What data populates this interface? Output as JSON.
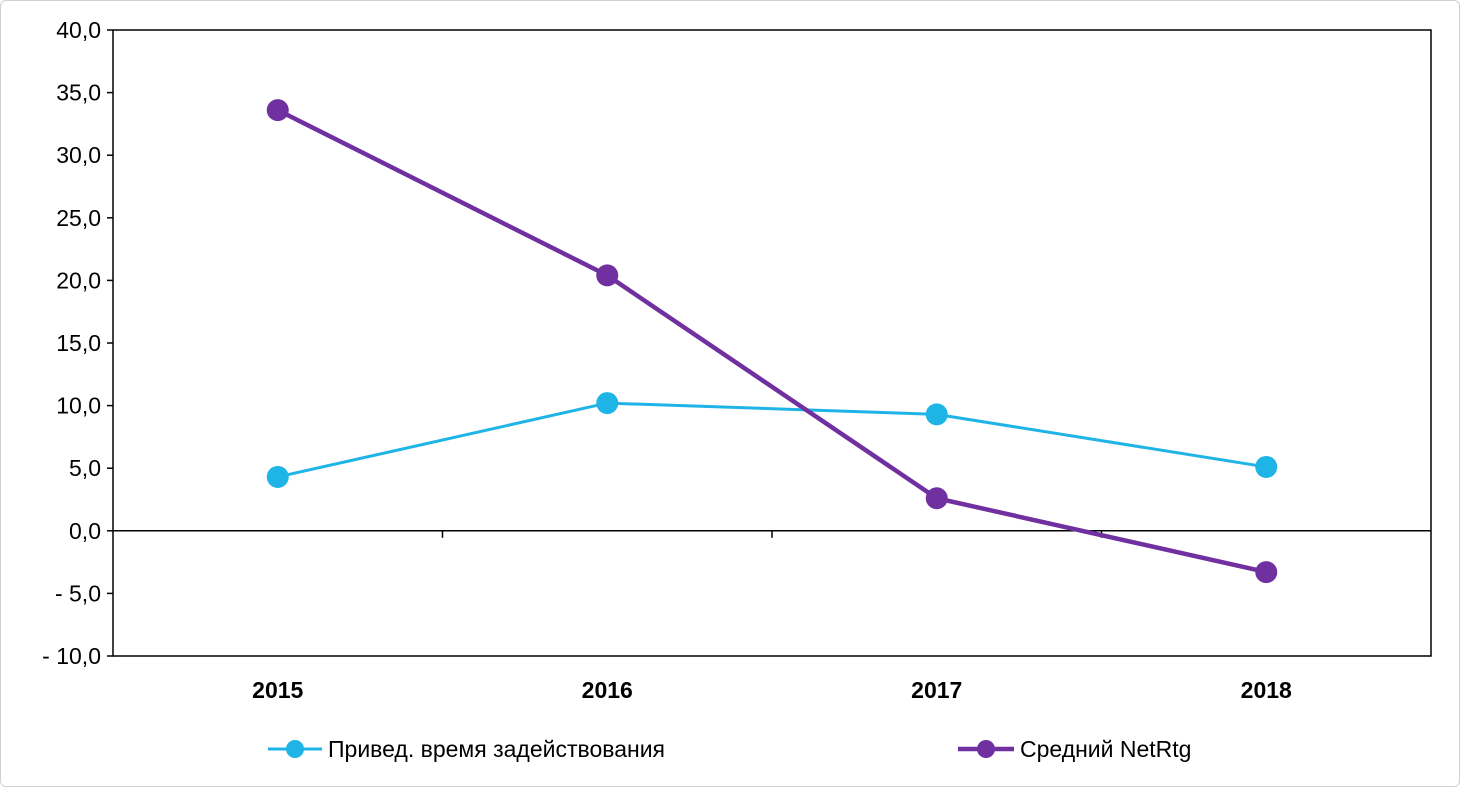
{
  "chart_data": {
    "type": "line",
    "title": "",
    "xlabel": "",
    "ylabel": "",
    "categories": [
      "2015",
      "2016",
      "2017",
      "2018"
    ],
    "ylim": [
      -10,
      40
    ],
    "y_ticks": [
      40,
      35,
      30,
      25,
      20,
      15,
      10,
      5,
      0,
      -5,
      -10
    ],
    "y_tick_labels": [
      "40,0",
      "35,0",
      "30,0",
      "25,0",
      "20,0",
      "15,0",
      "10,0",
      "5,0",
      "0,0",
      "- 5,0",
      "- 10,0"
    ],
    "grid": false,
    "legend_position": "bottom",
    "series": [
      {
        "name": "Привед. время задействования",
        "color": "#1fb4e6",
        "values": [
          4.3,
          10.2,
          9.3,
          5.1
        ]
      },
      {
        "name": "Средний NetRtg",
        "color": "#7030a0",
        "values": [
          33.6,
          20.4,
          2.6,
          -3.3
        ]
      }
    ]
  }
}
